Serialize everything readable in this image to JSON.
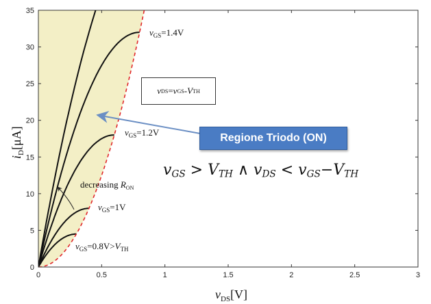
{
  "chart_data": {
    "type": "line",
    "xlim": [
      0,
      3
    ],
    "ylim": [
      0,
      35
    ],
    "x_ticks": [
      "0",
      "0.5",
      "1",
      "1.5",
      "2",
      "2.5",
      "3"
    ],
    "y_ticks": [
      "0",
      "5",
      "10",
      "15",
      "20",
      "25",
      "30",
      "35"
    ],
    "xlabel": {
      "main": "v",
      "sub": "DS",
      "unit": "[V]"
    },
    "ylabel": {
      "main": "i",
      "sub": "D",
      "unit": "[μA]"
    },
    "series": [
      {
        "k": 100,
        "vov": 0.3
      },
      {
        "k": 100,
        "vov": 0.4
      },
      {
        "k": 100,
        "vov": 0.6
      },
      {
        "k": 100,
        "vov": 0.8
      },
      {
        "k": 100,
        "vov": 1.0
      }
    ],
    "boundary": {
      "k": 100,
      "x_max": 0.84,
      "style": "dashed",
      "color": "#e0262a"
    },
    "region_fill": "#f3efc6",
    "curve_color": "#111111",
    "curve_labels": [
      {
        "id": "vgs14",
        "pre": "v",
        "sub": "GS",
        "post": "=1.4V"
      },
      {
        "id": "vgs12",
        "pre": "v",
        "sub": "GS",
        "post": "=1.2V"
      },
      {
        "id": "vgs1",
        "pre": "v",
        "sub": "GS",
        "post": "=1V"
      },
      {
        "id": "vgs08",
        "pre": "v",
        "sub": "GS",
        "post": "=0.8V>",
        "it2": "V",
        "sub2": "TH"
      }
    ],
    "annotation": {
      "text": "decreasing ",
      "var": "R",
      "sub": "ON"
    }
  },
  "boundary_formula": {
    "v1": "v",
    "s1": "DS",
    "eq": "=",
    "v2": "v",
    "s2": "GS",
    "dash": "-",
    "v3": "V",
    "s3": "TH"
  },
  "callout": {
    "label": "Regione Triodo (ON)",
    "color": "#4a7cc4"
  },
  "condition": {
    "a": "v",
    "as": "GS",
    "op1": " > ",
    "b": "V",
    "bs": "TH",
    "op2": " ∧ ",
    "c": "v",
    "cs": "DS",
    "op3": " <  ",
    "d": "v",
    "ds": "GS",
    "op4": "−",
    "e": "V",
    "es": "TH"
  }
}
